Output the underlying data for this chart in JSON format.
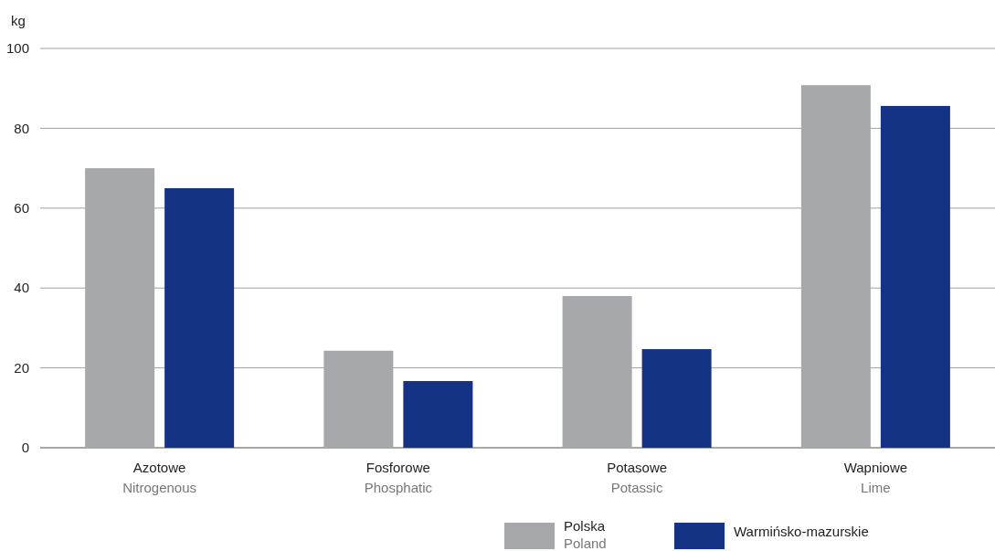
{
  "chart_data": {
    "type": "bar",
    "ylabel": "kg",
    "categories": [
      "Azotowe\nNitrogenous",
      "Fosforowe\nPhosphatic",
      "Potasowe\nPotassic",
      "Wapniowe\nLime"
    ],
    "series": [
      {
        "name": "Polska\nPoland",
        "color": "#a7a8ab",
        "values": [
          70,
          24.3,
          38,
          90.8
        ]
      },
      {
        "name": "Warmińsko-mazurskie",
        "color": "#153384",
        "values": [
          65,
          16.7,
          24.7,
          85.6
        ]
      }
    ],
    "ylim": [
      0,
      100
    ],
    "yticks": [
      0,
      20,
      40,
      60,
      80,
      100
    ],
    "grid": "y",
    "legend": "bottom"
  }
}
